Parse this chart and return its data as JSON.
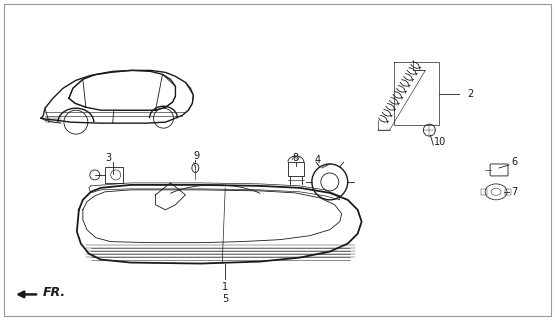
{
  "background_color": "#ffffff",
  "line_color": "#1a1a1a",
  "fig_width": 5.55,
  "fig_height": 3.2,
  "dpi": 100,
  "fr_label": "FR."
}
